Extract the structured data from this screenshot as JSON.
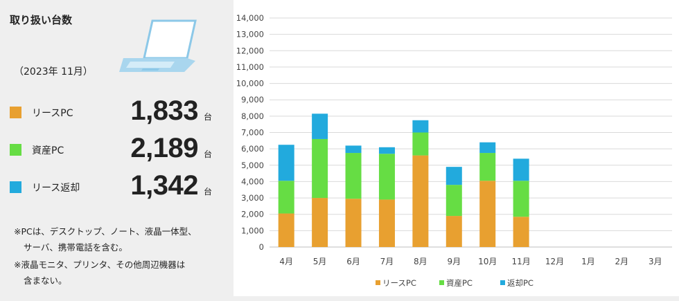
{
  "panel": {
    "title": "取り扱い台数",
    "date": "（2023年 11月）",
    "unit": "台",
    "rows": [
      {
        "label": "リースPC",
        "value": "1,833",
        "color": "#e8a030"
      },
      {
        "label": "資産PC",
        "value": "2,189",
        "color": "#66dd44"
      },
      {
        "label": "リース返却",
        "value": "1,342",
        "color": "#22aadd"
      }
    ],
    "notes": [
      "※PCは、デスクトップ、ノート、液晶一体型、",
      "サーバ、携帯電話を含む。",
      "※液晶モニタ、プリンタ、その他周辺機器は",
      "含まない。"
    ],
    "laptop_icon": "laptop-icon"
  },
  "chart_data": {
    "type": "bar",
    "stacked": true,
    "categories": [
      "4月",
      "5月",
      "6月",
      "7月",
      "8月",
      "9月",
      "10月",
      "11月",
      "12月",
      "1月",
      "2月",
      "3月"
    ],
    "series": [
      {
        "name": "リースPC",
        "color": "#e8a030",
        "values": [
          2050,
          3000,
          2950,
          2900,
          5600,
          1900,
          4050,
          1850,
          null,
          null,
          null,
          null
        ]
      },
      {
        "name": "資産PC",
        "color": "#66dd44",
        "values": [
          2000,
          3600,
          2800,
          2800,
          1400,
          1900,
          1700,
          2200,
          null,
          null,
          null,
          null
        ]
      },
      {
        "name": "返却PC",
        "color": "#22aadd",
        "values": [
          2200,
          1550,
          450,
          400,
          750,
          1100,
          650,
          1350,
          null,
          null,
          null,
          null
        ]
      }
    ],
    "yticks": [
      "0",
      "1,000",
      "2,000",
      "3,000",
      "4,000",
      "5,000",
      "6,000",
      "7,000",
      "8,000",
      "9,000",
      "10,000",
      "11,000",
      "12,000",
      "13,000",
      "14,000"
    ],
    "ylim": [
      0,
      14000
    ],
    "grid": true,
    "legend_position": "bottom"
  }
}
